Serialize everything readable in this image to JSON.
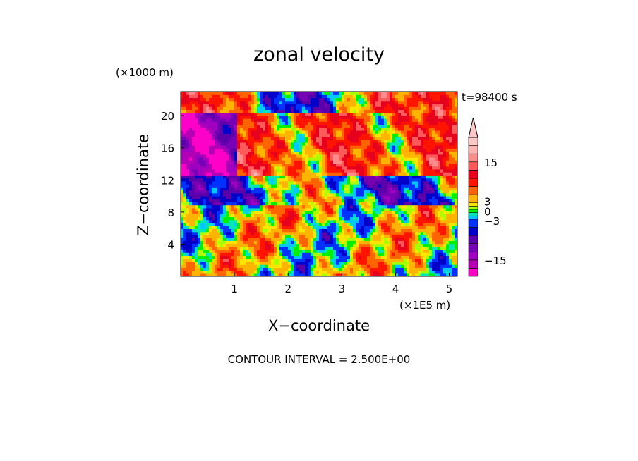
{
  "chart_data": {
    "type": "heatmap",
    "title": "zonal velocity",
    "xlabel": "X−coordinate",
    "ylabel": "Z−coordinate",
    "x_unit": "(×1E5 m)",
    "y_unit": "(×1000 m)",
    "time_label": "t=98400 s",
    "footer": "CONTOUR INTERVAL = 2.500E+00",
    "xlim": [
      0,
      5.15
    ],
    "ylim": [
      0,
      23
    ],
    "x_ticks": [
      "1",
      "2",
      "3",
      "4",
      "5"
    ],
    "x_tick_values": [
      1,
      2,
      3,
      4,
      5
    ],
    "y_ticks": [
      "4",
      "8",
      "12",
      "16",
      "20"
    ],
    "y_tick_values": [
      4,
      8,
      12,
      16,
      20
    ],
    "colorbar": {
      "levels": [
        -20,
        -17.5,
        -15,
        -12.5,
        -10,
        -7.5,
        -5,
        -2.5,
        -1.5,
        -0.5,
        0.5,
        1.5,
        2.5,
        5,
        7.5,
        10,
        12.5,
        15,
        17.5,
        20,
        22.5
      ],
      "colors": [
        "#ff00c8",
        "#b400b4",
        "#a000c0",
        "#7800b4",
        "#5a00aa",
        "#0000c8",
        "#0032ff",
        "#00c8ff",
        "#00e6b4",
        "#00f000",
        "#aaff00",
        "#ffe600",
        "#ffb400",
        "#ff6400",
        "#ff1400",
        "#e6001e",
        "#ff5a5a",
        "#ff8c8c",
        "#ffb4b4",
        "#ffc8c8"
      ],
      "tick_labels": [
        "15",
        "3",
        "0",
        "−3",
        "−15"
      ],
      "tick_values": [
        15,
        3,
        0,
        -3,
        -15
      ],
      "extend": "max"
    }
  }
}
